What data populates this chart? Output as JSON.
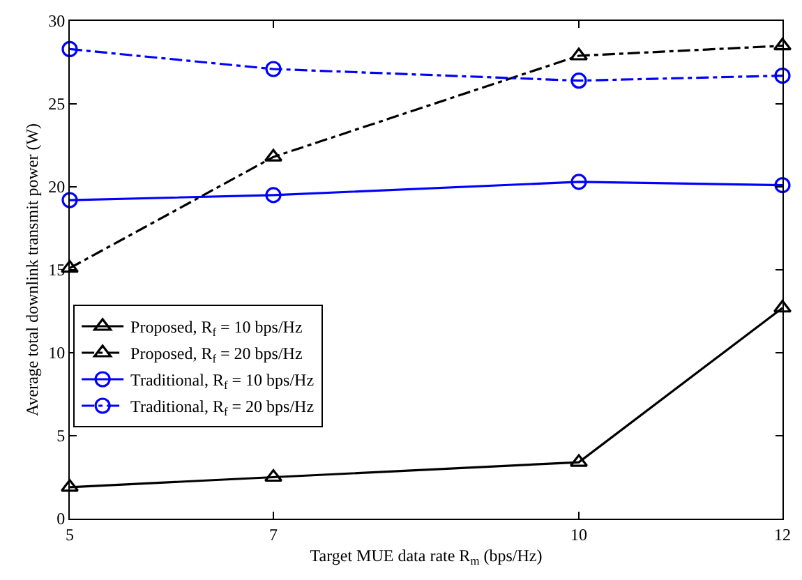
{
  "chart_data": {
    "type": "line",
    "xlabel": "Target MUE data rate R$_{m}$ (bps/Hz)",
    "ylabel": "Average total downlink transmit power (W)",
    "x": [
      5,
      7,
      10,
      12
    ],
    "xlim": [
      5,
      12
    ],
    "xticks": [
      5,
      7,
      10,
      12
    ],
    "ylim": [
      0,
      30
    ],
    "yticks": [
      0,
      5,
      10,
      15,
      20,
      25,
      30
    ],
    "legend": "left",
    "series": [
      {
        "name": "Proposed, R$_{f}$ = 10 bps/Hz",
        "color": "#000000",
        "values": [
          1.9,
          2.5,
          3.4,
          12.7
        ],
        "marker": "triangle",
        "line_style": "solid"
      },
      {
        "name": "Proposed, R$_{f}$ = 20 bps/Hz",
        "color": "#000000",
        "values": [
          15.1,
          21.8,
          27.9,
          28.5
        ],
        "marker": "triangle",
        "line_style": "dashdot"
      },
      {
        "name": "Traditional, R$_{f}$ = 10 bps/Hz",
        "color": "#0000ff",
        "values": [
          19.2,
          19.5,
          20.3,
          20.1
        ],
        "marker": "circle",
        "line_style": "solid"
      },
      {
        "name": "Traditional, R$_{f}$ = 20 bps/Hz",
        "color": "#0000ff",
        "values": [
          28.3,
          27.1,
          26.4,
          26.7
        ],
        "marker": "circle",
        "line_style": "dashdot"
      }
    ]
  }
}
